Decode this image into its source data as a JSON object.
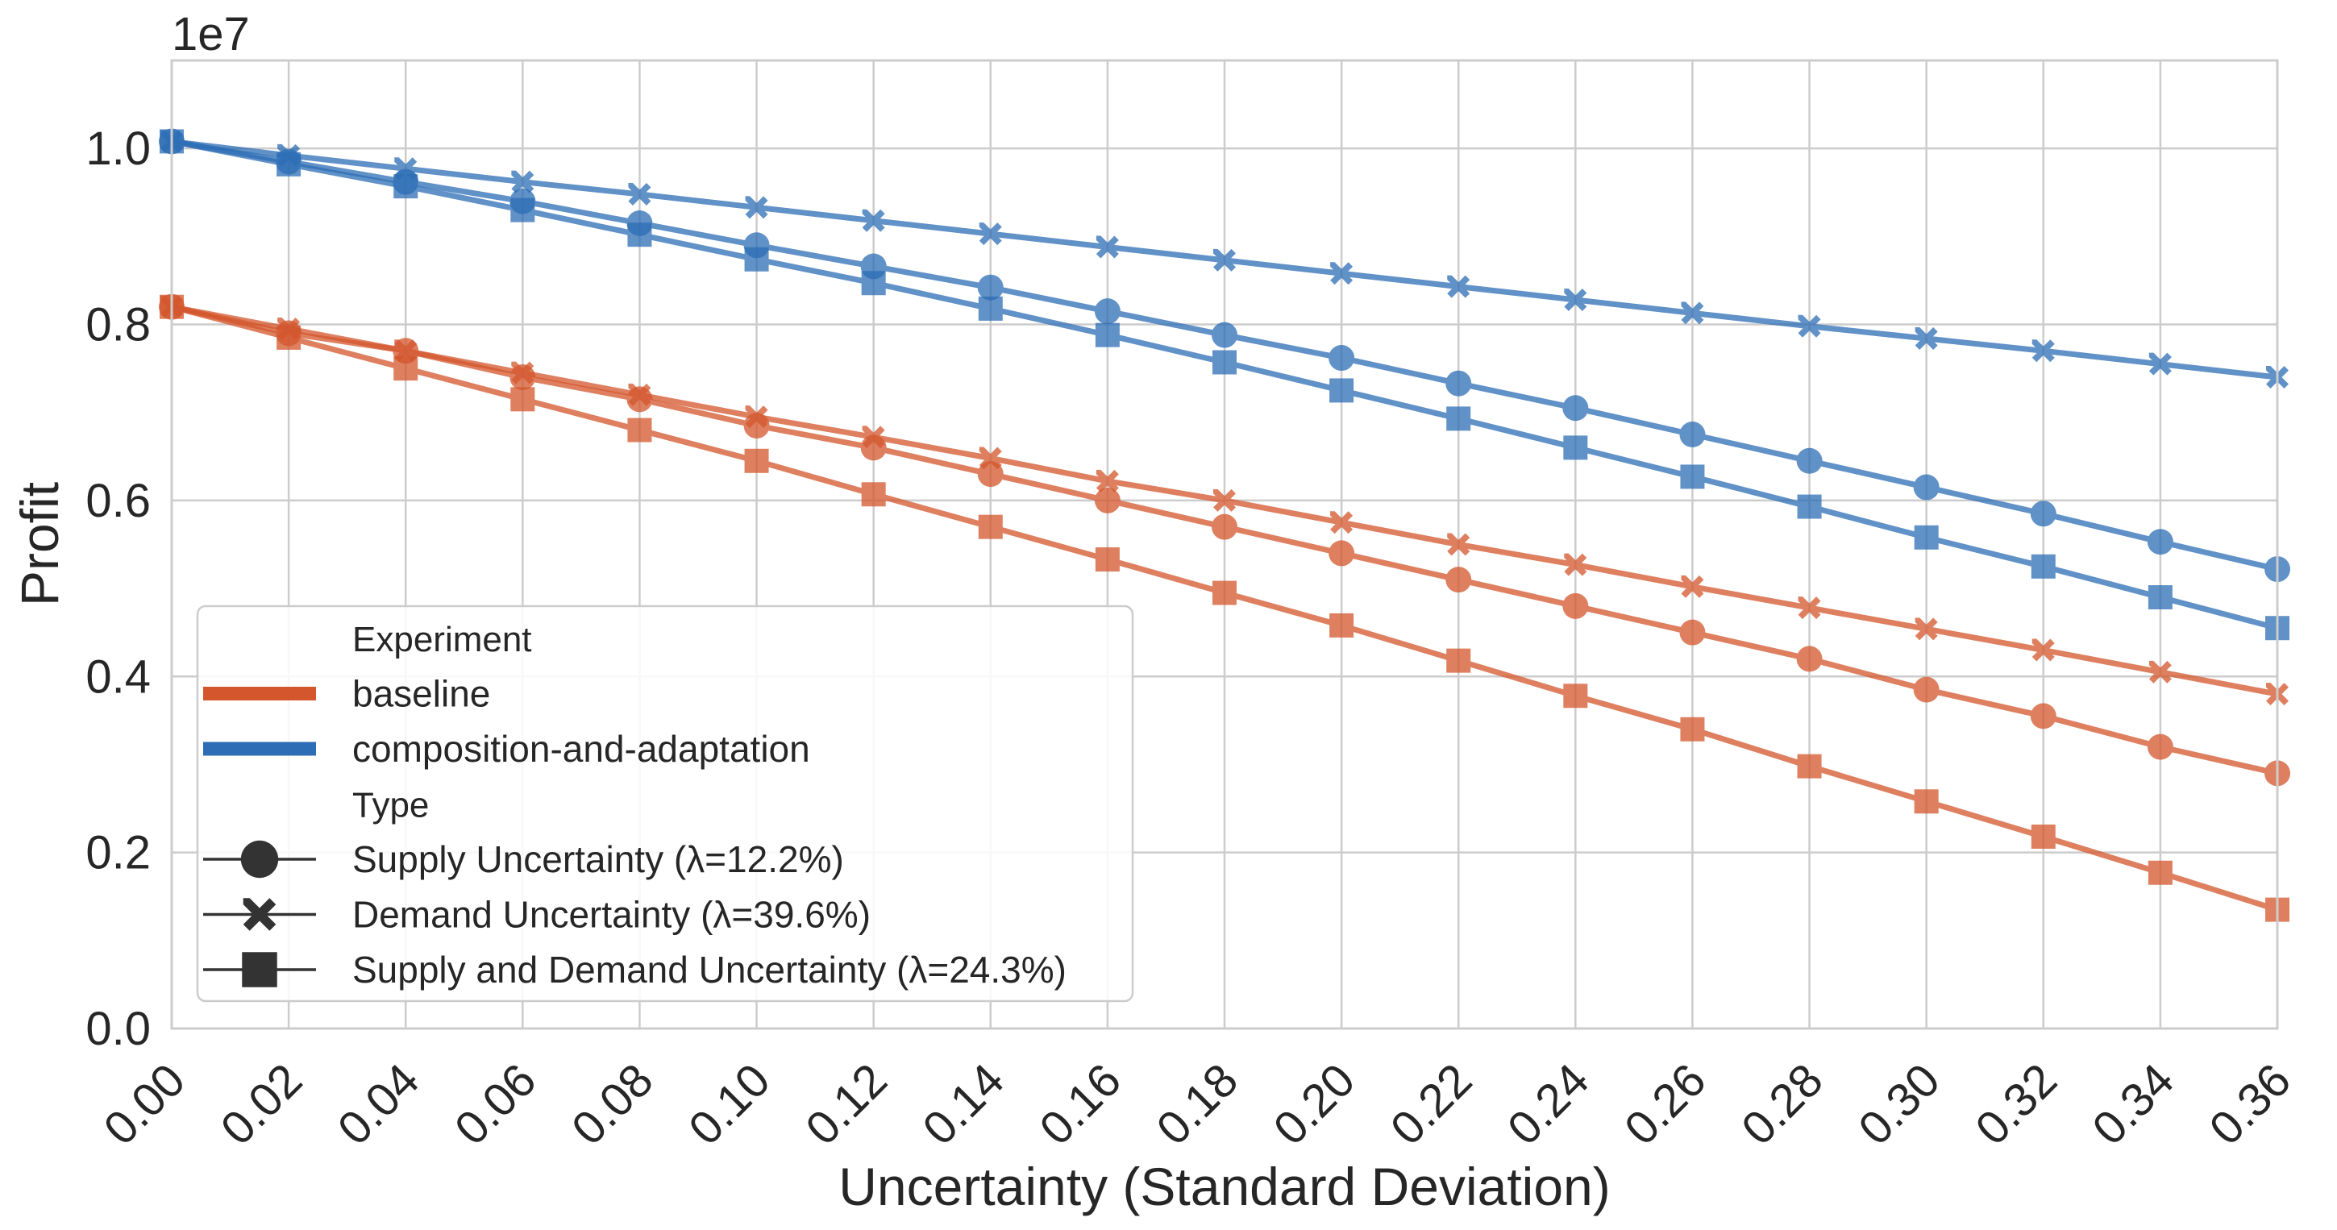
{
  "chart_data": {
    "type": "line",
    "title": "",
    "xlabel": "Uncertainty (Standard Deviation)",
    "ylabel": "Profit",
    "y_exponent_label": "1e7",
    "xlim": [
      0.0,
      0.36
    ],
    "ylim": [
      0.0,
      1.1
    ],
    "y_scale": 10000000,
    "x_ticks": [
      "0.00",
      "0.02",
      "0.04",
      "0.06",
      "0.08",
      "0.10",
      "0.12",
      "0.14",
      "0.16",
      "0.18",
      "0.20",
      "0.22",
      "0.24",
      "0.26",
      "0.28",
      "0.30",
      "0.32",
      "0.34",
      "0.36"
    ],
    "y_ticks": [
      "0.0",
      "0.2",
      "0.4",
      "0.6",
      "0.8",
      "1.0"
    ],
    "grid": true,
    "x": [
      0.0,
      0.02,
      0.04,
      0.06,
      0.08,
      0.1,
      0.12,
      0.14,
      0.16,
      0.18,
      0.2,
      0.22,
      0.24,
      0.26,
      0.28,
      0.3,
      0.32,
      0.34,
      0.36
    ],
    "colors": {
      "baseline": "#d4562c",
      "composition-and-adaptation": "#2c6db5"
    },
    "series": [
      {
        "name": "baseline / Supply Uncertainty (λ=12.2%)",
        "experiment": "baseline",
        "type": "Supply Uncertainty (λ=12.2%)",
        "marker": "circle",
        "values": [
          0.82,
          0.79,
          0.77,
          0.74,
          0.715,
          0.685,
          0.66,
          0.63,
          0.6,
          0.57,
          0.54,
          0.51,
          0.48,
          0.45,
          0.42,
          0.385,
          0.355,
          0.32,
          0.29
        ]
      },
      {
        "name": "baseline / Demand Uncertainty (λ=39.6%)",
        "experiment": "baseline",
        "type": "Demand Uncertainty (λ=39.6%)",
        "marker": "x",
        "values": [
          0.82,
          0.795,
          0.77,
          0.745,
          0.72,
          0.695,
          0.672,
          0.648,
          0.622,
          0.6,
          0.575,
          0.55,
          0.527,
          0.502,
          0.478,
          0.454,
          0.43,
          0.405,
          0.38
        ]
      },
      {
        "name": "baseline / Supply and Demand Uncertainty (λ=24.3%)",
        "experiment": "baseline",
        "type": "Supply and Demand Uncertainty (λ=24.3%)",
        "marker": "square",
        "values": [
          0.82,
          0.785,
          0.75,
          0.715,
          0.68,
          0.645,
          0.607,
          0.57,
          0.533,
          0.495,
          0.458,
          0.418,
          0.378,
          0.34,
          0.298,
          0.258,
          0.218,
          0.177,
          0.135
        ]
      },
      {
        "name": "composition-and-adaptation / Supply Uncertainty (λ=12.2%)",
        "experiment": "composition-and-adaptation",
        "type": "Supply Uncertainty (λ=12.2%)",
        "marker": "circle",
        "values": [
          1.008,
          0.985,
          0.962,
          0.94,
          0.915,
          0.89,
          0.866,
          0.842,
          0.815,
          0.788,
          0.762,
          0.733,
          0.705,
          0.675,
          0.645,
          0.615,
          0.585,
          0.553,
          0.522
        ]
      },
      {
        "name": "composition-and-adaptation / Demand Uncertainty (λ=39.6%)",
        "experiment": "composition-and-adaptation",
        "type": "Demand Uncertainty (λ=39.6%)",
        "marker": "x",
        "values": [
          1.008,
          0.992,
          0.977,
          0.962,
          0.948,
          0.933,
          0.918,
          0.903,
          0.888,
          0.873,
          0.858,
          0.843,
          0.828,
          0.813,
          0.798,
          0.784,
          0.77,
          0.755,
          0.74
        ]
      },
      {
        "name": "composition-and-adaptation / Supply and Demand Uncertainty (λ=24.3%)",
        "experiment": "composition-and-adaptation",
        "type": "Supply and Demand Uncertainty (λ=24.3%)",
        "marker": "square",
        "values": [
          1.008,
          0.982,
          0.957,
          0.93,
          0.902,
          0.874,
          0.847,
          0.818,
          0.788,
          0.757,
          0.725,
          0.693,
          0.66,
          0.627,
          0.593,
          0.558,
          0.525,
          0.49,
          0.455
        ]
      }
    ],
    "legend": {
      "position": "lower-left",
      "experiment_title": "Experiment",
      "experiment_items": [
        {
          "label": "baseline",
          "key": "baseline"
        },
        {
          "label": "composition-and-adaptation",
          "key": "composition-and-adaptation"
        }
      ],
      "type_title": "Type",
      "type_items": [
        {
          "label": "Supply Uncertainty (λ=12.2%)",
          "marker": "circle"
        },
        {
          "label": "Demand Uncertainty (λ=39.6%)",
          "marker": "x"
        },
        {
          "label": "Supply and Demand Uncertainty (λ=24.3%)",
          "marker": "square"
        }
      ]
    }
  }
}
